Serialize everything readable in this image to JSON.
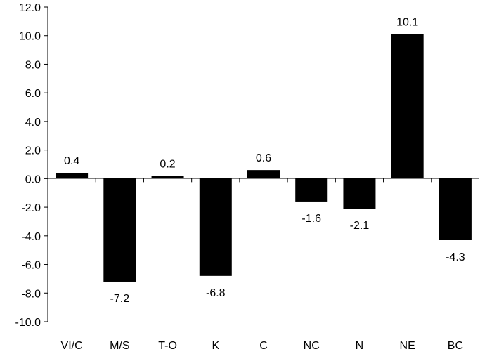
{
  "chart_data": {
    "type": "bar",
    "categories": [
      "VI/C",
      "M/S",
      "T-O",
      "K",
      "C",
      "NC",
      "N",
      "NE",
      "BC"
    ],
    "values": [
      0.4,
      -7.2,
      0.2,
      -6.8,
      0.6,
      -1.6,
      -2.1,
      10.1,
      -4.3
    ],
    "data_labels": [
      "0.4",
      "-7.2",
      "0.2",
      "-6.8",
      "0.6",
      "-1.6",
      "-2.1",
      "10.1",
      "-4.3"
    ],
    "y_tick_labels": [
      "12.0",
      "10.0",
      "8.0",
      "6.0",
      "4.0",
      "2.0",
      "0.0",
      "-2.0",
      "-4.0",
      "-6.0",
      "-8.0",
      "-10.0"
    ],
    "ylim": [
      -10,
      12
    ],
    "title": "",
    "xlabel": "",
    "ylabel": "",
    "grid": false,
    "bar_color": "#000000"
  }
}
